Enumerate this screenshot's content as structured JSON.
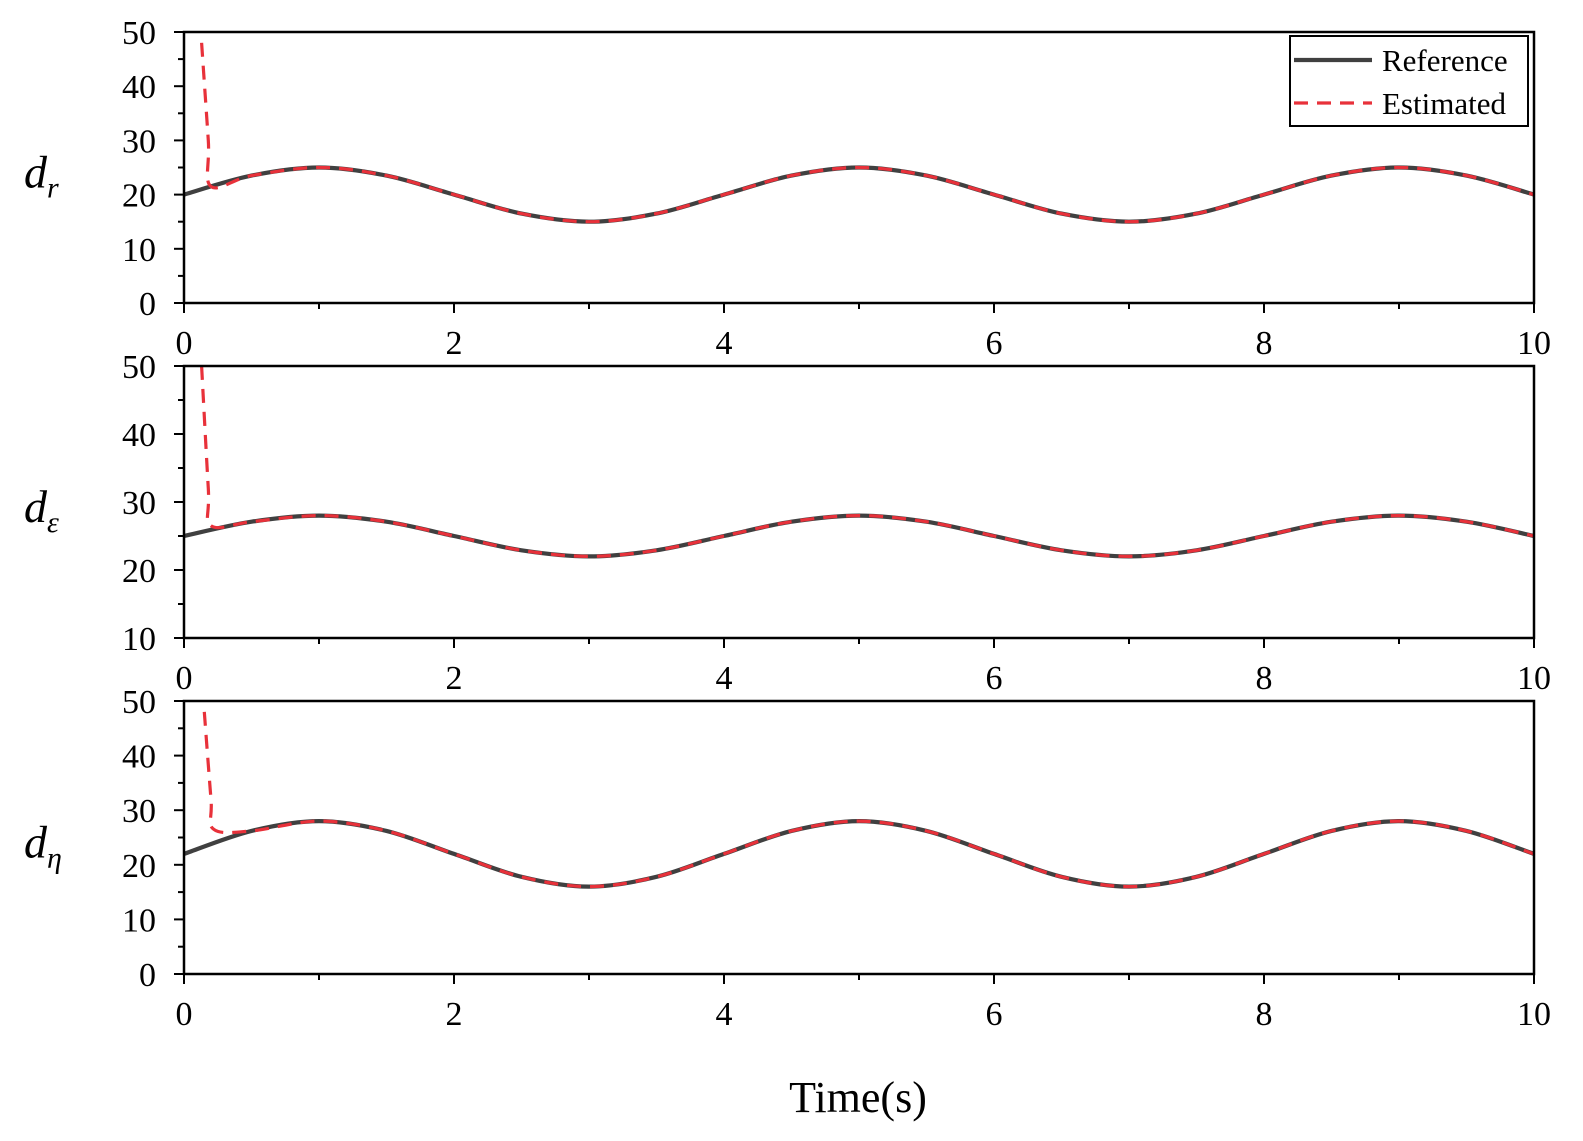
{
  "figure": {
    "xlabel": "Time(s)",
    "legend": {
      "position": "top-right",
      "entries": [
        {
          "label": "Reference",
          "color": "#404040",
          "style": "solid"
        },
        {
          "label": "Estimated",
          "color": "#e8313a",
          "style": "dashed"
        }
      ]
    }
  },
  "chart_data": [
    {
      "type": "line",
      "ylabel": "d",
      "ylabel_sub": "r",
      "xlim": [
        0,
        10
      ],
      "ylim": [
        0,
        50
      ],
      "xticks": [
        0,
        2,
        4,
        6,
        8,
        10
      ],
      "yticks": [
        0,
        10,
        20,
        30,
        40,
        50
      ],
      "grid": false,
      "series": [
        {
          "name": "Reference",
          "color": "#404040",
          "style": "solid",
          "x": [
            0,
            0.5,
            1,
            1.5,
            2,
            2.5,
            3,
            3.5,
            4,
            4.5,
            5,
            5.5,
            6,
            6.5,
            7,
            7.5,
            8,
            8.5,
            9,
            9.5,
            10
          ],
          "y": [
            20,
            23.5,
            25,
            23.5,
            20,
            16.5,
            15,
            16.5,
            20,
            23.5,
            25,
            23.5,
            20,
            16.5,
            15,
            16.5,
            20,
            23.5,
            25,
            23.5,
            20
          ]
        },
        {
          "name": "Estimated",
          "color": "#e8313a",
          "style": "dashed",
          "x": [
            0.13,
            0.18,
            0.2,
            0.5,
            1,
            1.5,
            2,
            2.5,
            3,
            3.5,
            4,
            4.5,
            5,
            5.5,
            6,
            6.5,
            7,
            7.5,
            8,
            8.5,
            9,
            9.5,
            10
          ],
          "y": [
            48,
            30,
            21.5,
            23.5,
            25,
            23.5,
            20,
            16.5,
            15,
            16.5,
            20,
            23.5,
            25,
            23.5,
            20,
            16.5,
            15,
            16.5,
            20,
            23.5,
            25,
            23.5,
            20
          ]
        }
      ]
    },
    {
      "type": "line",
      "ylabel": "d",
      "ylabel_sub": "ε",
      "xlim": [
        0,
        10
      ],
      "ylim": [
        10,
        50
      ],
      "xticks": [
        0,
        2,
        4,
        6,
        8,
        10
      ],
      "yticks": [
        10,
        20,
        30,
        40,
        50
      ],
      "grid": false,
      "series": [
        {
          "name": "Reference",
          "color": "#404040",
          "style": "solid",
          "x": [
            0,
            0.5,
            1,
            1.5,
            2,
            2.5,
            3,
            3.5,
            4,
            4.5,
            5,
            5.5,
            6,
            6.5,
            7,
            7.5,
            8,
            8.5,
            9,
            9.5,
            10
          ],
          "y": [
            25,
            27.1,
            28,
            27.1,
            25,
            22.9,
            22,
            22.9,
            25,
            27.1,
            28,
            27.1,
            25,
            22.9,
            22,
            22.9,
            25,
            27.1,
            28,
            27.1,
            25
          ]
        },
        {
          "name": "Estimated",
          "color": "#e8313a",
          "style": "dashed",
          "x": [
            0.13,
            0.18,
            0.2,
            0.5,
            1,
            1.5,
            2,
            2.5,
            3,
            3.5,
            4,
            4.5,
            5,
            5.5,
            6,
            6.5,
            7,
            7.5,
            8,
            8.5,
            9,
            9.5,
            10
          ],
          "y": [
            50,
            32,
            26.5,
            27.1,
            28,
            27.1,
            25,
            22.9,
            22,
            22.9,
            25,
            27.1,
            28,
            27.1,
            25,
            22.9,
            22,
            22.9,
            25,
            27.1,
            28,
            27.1,
            25
          ]
        }
      ]
    },
    {
      "type": "line",
      "ylabel": "d",
      "ylabel_sub": "η",
      "xlim": [
        0,
        10
      ],
      "ylim": [
        0,
        50
      ],
      "xticks": [
        0,
        2,
        4,
        6,
        8,
        10
      ],
      "yticks": [
        0,
        10,
        20,
        30,
        40,
        50
      ],
      "grid": false,
      "series": [
        {
          "name": "Reference",
          "color": "#404040",
          "style": "solid",
          "x": [
            0,
            0.5,
            1,
            1.5,
            2,
            2.5,
            3,
            3.5,
            4,
            4.5,
            5,
            5.5,
            6,
            6.5,
            7,
            7.5,
            8,
            8.5,
            9,
            9.5,
            10
          ],
          "y": [
            22,
            26.2,
            28,
            26.2,
            22,
            17.8,
            16,
            17.8,
            22,
            26.2,
            28,
            26.2,
            22,
            17.8,
            16,
            17.8,
            22,
            26.2,
            28,
            26.2,
            22
          ]
        },
        {
          "name": "Estimated",
          "color": "#e8313a",
          "style": "dashed",
          "x": [
            0.15,
            0.2,
            0.22,
            0.5,
            1,
            1.5,
            2,
            2.5,
            3,
            3.5,
            4,
            4.5,
            5,
            5.5,
            6,
            6.5,
            7,
            7.5,
            8,
            8.5,
            9,
            9.5,
            10
          ],
          "y": [
            48,
            32,
            26.5,
            26.2,
            28,
            26.2,
            22,
            17.8,
            16,
            17.8,
            22,
            26.2,
            28,
            26.2,
            22,
            17.8,
            16,
            17.8,
            22,
            26.2,
            28,
            26.2,
            22
          ]
        }
      ]
    }
  ]
}
